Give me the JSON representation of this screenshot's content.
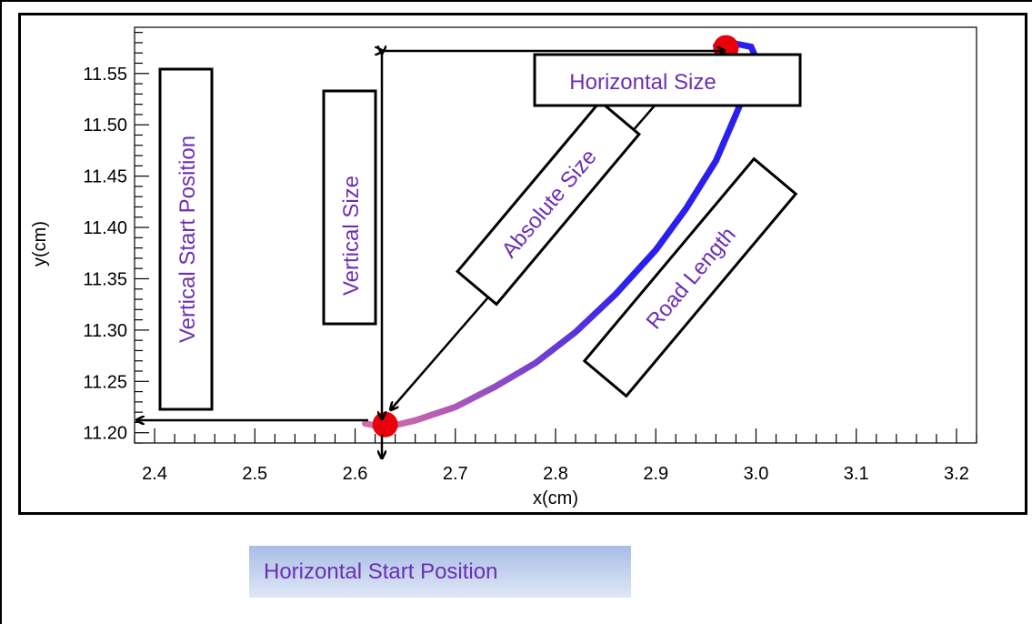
{
  "chart_data": {
    "type": "line",
    "xlabel": "x(cm)",
    "ylabel": "y(cm)",
    "xlim": [
      2.38,
      3.22
    ],
    "ylim": [
      11.19,
      11.595
    ],
    "x_ticks": [
      "2.4",
      "2.5",
      "2.6",
      "2.7",
      "2.8",
      "2.9",
      "3.0",
      "3.1",
      "3.2"
    ],
    "y_ticks": [
      "11.20",
      "11.25",
      "11.30",
      "11.35",
      "11.40",
      "11.45",
      "11.50",
      "11.55"
    ],
    "series": [
      {
        "x": [
          2.61,
          2.63,
          2.66,
          2.7,
          2.74,
          2.78,
          2.82,
          2.86,
          2.9,
          2.93,
          2.96,
          2.98,
          2.995,
          3.0,
          2.995,
          2.98,
          2.97,
          2.96
        ],
        "y": [
          11.209,
          11.205,
          11.212,
          11.225,
          11.245,
          11.268,
          11.298,
          11.335,
          11.378,
          11.418,
          11.465,
          11.51,
          11.545,
          11.565,
          11.576,
          11.579,
          11.578,
          11.577
        ],
        "colors": [
          "#d26aa8",
          "#2a1ff0"
        ]
      }
    ],
    "start_point": {
      "x": 2.63,
      "y": 11.208
    },
    "end_point": {
      "x": 2.97,
      "y": 11.575
    },
    "annotations": {
      "horizontal_size": "Horizontal Size",
      "absolute_size": "Absolute Size",
      "vertical_size": "Vertical Size",
      "vertical_start_position": "Vertical Start Position",
      "road_length": "Road Length"
    }
  },
  "banner": {
    "label": "Horizontal Start Position",
    "color_top": "#a8bde6",
    "color_bottom": "#dfe7f6"
  },
  "colors": {
    "marker": "#e8000b",
    "label_text": "#6b2fb3",
    "arrow": "#000000"
  }
}
